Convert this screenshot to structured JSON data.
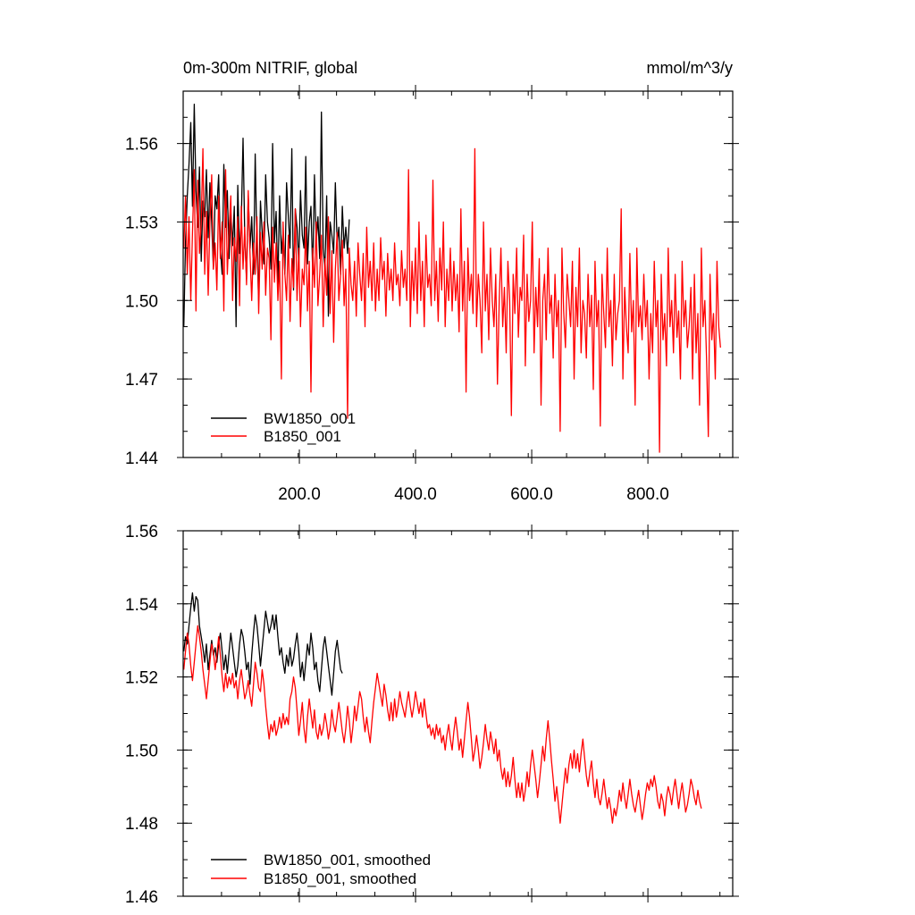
{
  "chart_data": [
    {
      "type": "line",
      "title_left": "0m-300m NITRIF, global",
      "title_right": "mmol/m^3/y",
      "xlim": [
        0,
        946
      ],
      "ylim": [
        1.44,
        1.58
      ],
      "yticks": [
        1.44,
        1.47,
        1.5,
        1.53,
        1.56
      ],
      "ytick_labels": [
        "1.44",
        "1.47",
        "1.50",
        "1.53",
        "1.56"
      ],
      "xticks": [
        200,
        400,
        600,
        800
      ],
      "xtick_labels": [
        "200.0",
        "400.0",
        "600.0",
        "800.0"
      ],
      "legend_position": "bottom-left",
      "series": [
        {
          "name": "BW1850_001",
          "color": "#000000",
          "x_start": 1,
          "x_step": 3,
          "values": [
            1.49,
            1.522,
            1.54,
            1.552,
            1.568,
            1.536,
            1.575,
            1.542,
            1.528,
            1.551,
            1.515,
            1.538,
            1.532,
            1.55,
            1.524,
            1.545,
            1.53,
            1.512,
            1.54,
            1.535,
            1.548,
            1.52,
            1.51,
            1.552,
            1.528,
            1.542,
            1.516,
            1.534,
            1.521,
            1.536,
            1.49,
            1.544,
            1.518,
            1.53,
            1.562,
            1.525,
            1.508,
            1.54,
            1.52,
            1.532,
            1.51,
            1.556,
            1.52,
            1.5,
            1.538,
            1.526,
            1.514,
            1.548,
            1.53,
            1.524,
            1.512,
            1.56,
            1.522,
            1.534,
            1.506,
            1.54,
            1.518,
            1.526,
            1.51,
            1.545,
            1.532,
            1.52,
            1.558,
            1.504,
            1.535,
            1.528,
            1.514,
            1.542,
            1.525,
            1.52,
            1.555,
            1.514,
            1.53,
            1.536,
            1.51,
            1.548,
            1.522,
            1.532,
            1.516,
            1.572,
            1.52,
            1.512,
            1.54,
            1.494,
            1.53,
            1.525,
            1.518,
            1.545,
            1.522,
            1.528,
            1.51,
            1.536,
            1.52,
            1.528,
            1.518,
            1.531
          ]
        },
        {
          "name": "B1850_001",
          "color": "#ff0000",
          "x_start": 1,
          "x_step": 3,
          "values": [
            1.52,
            1.54,
            1.51,
            1.532,
            1.5,
            1.526,
            1.55,
            1.496,
            1.546,
            1.518,
            1.53,
            1.558,
            1.51,
            1.534,
            1.502,
            1.53,
            1.548,
            1.512,
            1.522,
            1.504,
            1.54,
            1.516,
            1.53,
            1.496,
            1.55,
            1.51,
            1.527,
            1.54,
            1.5,
            1.524,
            1.515,
            1.532,
            1.498,
            1.536,
            1.512,
            1.528,
            1.506,
            1.542,
            1.518,
            1.5,
            1.522,
            1.51,
            1.532,
            1.495,
            1.526,
            1.512,
            1.53,
            1.502,
            1.52,
            1.516,
            1.485,
            1.528,
            1.507,
            1.522,
            1.5,
            1.515,
            1.47,
            1.53,
            1.51,
            1.5,
            1.525,
            1.492,
            1.516,
            1.505,
            1.535,
            1.5,
            1.52,
            1.49,
            1.512,
            1.506,
            1.528,
            1.496,
            1.515,
            1.465,
            1.52,
            1.505,
            1.53,
            1.498,
            1.51,
            1.525,
            1.49,
            1.516,
            1.502,
            1.532,
            1.495,
            1.519,
            1.484,
            1.512,
            1.526,
            1.5,
            1.51,
            1.523,
            1.498,
            1.512,
            1.455,
            1.52,
            1.506,
            1.5,
            1.515,
            1.494,
            1.522,
            1.51,
            1.5,
            1.518,
            1.49,
            1.528,
            1.505,
            1.515,
            1.5,
            1.522,
            1.496,
            1.512,
            1.5,
            1.524,
            1.508,
            1.515,
            1.494,
            1.518,
            1.504,
            1.512,
            1.5,
            1.522,
            1.506,
            1.51,
            1.498,
            1.519,
            1.505,
            1.512,
            1.5,
            1.55,
            1.49,
            1.515,
            1.5,
            1.52,
            1.495,
            1.53,
            1.5,
            1.515,
            1.49,
            1.525,
            1.505,
            1.51,
            1.498,
            1.546,
            1.5,
            1.515,
            1.492,
            1.52,
            1.504,
            1.53,
            1.49,
            1.512,
            1.5,
            1.52,
            1.496,
            1.515,
            1.5,
            1.51,
            1.488,
            1.535,
            1.496,
            1.515,
            1.465,
            1.52,
            1.5,
            1.51,
            1.495,
            1.558,
            1.49,
            1.51,
            1.5,
            1.48,
            1.53,
            1.496,
            1.51,
            1.485,
            1.52,
            1.5,
            1.49,
            1.51,
            1.468,
            1.5,
            1.52,
            1.49,
            1.505,
            1.48,
            1.515,
            1.5,
            1.456,
            1.51,
            1.495,
            1.52,
            1.486,
            1.505,
            1.5,
            1.525,
            1.475,
            1.51,
            1.492,
            1.5,
            1.53,
            1.48,
            1.505,
            1.49,
            1.516,
            1.46,
            1.5,
            1.51,
            1.485,
            1.52,
            1.495,
            1.502,
            1.478,
            1.51,
            1.49,
            1.5,
            1.45,
            1.52,
            1.496,
            1.482,
            1.51,
            1.5,
            1.49,
            1.515,
            1.47,
            1.505,
            1.49,
            1.52,
            1.48,
            1.5,
            1.495,
            1.478,
            1.51,
            1.49,
            1.502,
            1.466,
            1.515,
            1.49,
            1.5,
            1.452,
            1.51,
            1.495,
            1.482,
            1.52,
            1.49,
            1.5,
            1.475,
            1.51,
            1.485,
            1.495,
            1.5,
            1.535,
            1.47,
            1.505,
            1.49,
            1.48,
            1.518,
            1.488,
            1.5,
            1.46,
            1.52,
            1.49,
            1.498,
            1.485,
            1.51,
            1.49,
            1.5,
            1.47,
            1.495,
            1.48,
            1.515,
            1.49,
            1.5,
            1.442,
            1.51,
            1.485,
            1.495,
            1.475,
            1.52,
            1.49,
            1.5,
            1.48,
            1.51,
            1.486,
            1.496,
            1.47,
            1.515,
            1.49,
            1.5,
            1.482,
            1.49,
            1.505,
            1.47,
            1.51,
            1.48,
            1.495,
            1.46,
            1.52,
            1.49,
            1.5,
            1.478,
            1.448,
            1.51,
            1.485,
            1.495,
            1.47,
            1.515,
            1.49,
            1.482
          ]
        }
      ],
      "legend": [
        "BW1850_001",
        "B1850_001"
      ]
    },
    {
      "type": "line",
      "xlim": [
        0,
        946
      ],
      "ylim": [
        1.46,
        1.56
      ],
      "yticks": [
        1.46,
        1.48,
        1.5,
        1.52,
        1.54,
        1.56
      ],
      "ytick_labels": [
        "1.46",
        "1.48",
        "1.50",
        "1.52",
        "1.54",
        "1.56"
      ],
      "xticks": [
        200,
        400,
        600,
        800
      ],
      "legend_position": "bottom-left",
      "series": [
        {
          "name": "BW1850_001, smoothed",
          "color": "#000000",
          "x_start": 1,
          "x_step": 3,
          "values": [
            1.527,
            1.531,
            1.529,
            1.534,
            1.539,
            1.543,
            1.538,
            1.542,
            1.541,
            1.534,
            1.531,
            1.528,
            1.524,
            1.529,
            1.522,
            1.526,
            1.53,
            1.526,
            1.528,
            1.524,
            1.529,
            1.532,
            1.527,
            1.522,
            1.526,
            1.521,
            1.527,
            1.532,
            1.528,
            1.524,
            1.52,
            1.523,
            1.529,
            1.533,
            1.531,
            1.527,
            1.522,
            1.524,
            1.518,
            1.526,
            1.532,
            1.537,
            1.534,
            1.529,
            1.523,
            1.528,
            1.533,
            1.538,
            1.535,
            1.532,
            1.534,
            1.537,
            1.533,
            1.537,
            1.531,
            1.526,
            1.528,
            1.524,
            1.521,
            1.526,
            1.523,
            1.528,
            1.523,
            1.525,
            1.529,
            1.532,
            1.527,
            1.52,
            1.524,
            1.519,
            1.524,
            1.529,
            1.526,
            1.532,
            1.528,
            1.522,
            1.524,
            1.519,
            1.516,
            1.522,
            1.528,
            1.531,
            1.527,
            1.523,
            1.519,
            1.515,
            1.521,
            1.527,
            1.53,
            1.526,
            1.522,
            1.521
          ]
        },
        {
          "name": "B1850_001, smoothed",
          "color": "#ff0000",
          "x_start": 1,
          "x_step": 3,
          "values": [
            1.522,
            1.527,
            1.532,
            1.529,
            1.523,
            1.519,
            1.524,
            1.529,
            1.534,
            1.531,
            1.527,
            1.522,
            1.518,
            1.514,
            1.519,
            1.524,
            1.529,
            1.527,
            1.522,
            1.526,
            1.531,
            1.526,
            1.52,
            1.516,
            1.521,
            1.517,
            1.52,
            1.518,
            1.521,
            1.517,
            1.519,
            1.514,
            1.519,
            1.522,
            1.518,
            1.514,
            1.516,
            1.519,
            1.515,
            1.512,
            1.518,
            1.524,
            1.521,
            1.517,
            1.516,
            1.522,
            1.518,
            1.512,
            1.507,
            1.503,
            1.507,
            1.505,
            1.508,
            1.504,
            1.506,
            1.509,
            1.506,
            1.51,
            1.507,
            1.509,
            1.507,
            1.514,
            1.516,
            1.52,
            1.517,
            1.511,
            1.504,
            1.508,
            1.513,
            1.506,
            1.502,
            1.509,
            1.514,
            1.51,
            1.506,
            1.511,
            1.505,
            1.503,
            1.507,
            1.504,
            1.506,
            1.51,
            1.507,
            1.503,
            1.506,
            1.511,
            1.507,
            1.505,
            1.509,
            1.513,
            1.509,
            1.505,
            1.502,
            1.506,
            1.512,
            1.508,
            1.502,
            1.506,
            1.512,
            1.508,
            1.512,
            1.516,
            1.514,
            1.509,
            1.505,
            1.509,
            1.505,
            1.502,
            1.508,
            1.513,
            1.517,
            1.521,
            1.518,
            1.515,
            1.512,
            1.518,
            1.515,
            1.511,
            1.508,
            1.513,
            1.508,
            1.514,
            1.509,
            1.512,
            1.516,
            1.513,
            1.511,
            1.509,
            1.513,
            1.516,
            1.512,
            1.509,
            1.512,
            1.516,
            1.513,
            1.51,
            1.513,
            1.509,
            1.514,
            1.51,
            1.506,
            1.507,
            1.504,
            1.506,
            1.503,
            1.507,
            1.504,
            1.506,
            1.502,
            1.504,
            1.5,
            1.504,
            1.507,
            1.503,
            1.5,
            1.505,
            1.509,
            1.505,
            1.5,
            1.503,
            1.498,
            1.503,
            1.508,
            1.513,
            1.509,
            1.503,
            1.497,
            1.5,
            1.504,
            1.5,
            1.495,
            1.498,
            1.502,
            1.507,
            1.503,
            1.5,
            1.505,
            1.502,
            1.499,
            1.503,
            1.497,
            1.5,
            1.495,
            1.492,
            1.495,
            1.49,
            1.494,
            1.49,
            1.493,
            1.498,
            1.492,
            1.487,
            1.491,
            1.487,
            1.491,
            1.486,
            1.489,
            1.494,
            1.49,
            1.496,
            1.5,
            1.496,
            1.492,
            1.487,
            1.491,
            1.496,
            1.501,
            1.497,
            1.503,
            1.508,
            1.503,
            1.497,
            1.492,
            1.486,
            1.49,
            1.485,
            1.48,
            1.485,
            1.49,
            1.495,
            1.491,
            1.496,
            1.499,
            1.495,
            1.5,
            1.495,
            1.499,
            1.494,
            1.499,
            1.503,
            1.498,
            1.493,
            1.49,
            1.494,
            1.497,
            1.491,
            1.487,
            1.492,
            1.487,
            1.485,
            1.488,
            1.492,
            1.488,
            1.484,
            1.487,
            1.484,
            1.48,
            1.484,
            1.482,
            1.485,
            1.489,
            1.486,
            1.491,
            1.487,
            1.484,
            1.488,
            1.492,
            1.488,
            1.485,
            1.483,
            1.486,
            1.489,
            1.485,
            1.481,
            1.484,
            1.488,
            1.491,
            1.489,
            1.492,
            1.49,
            1.493,
            1.49,
            1.486,
            1.484,
            1.488,
            1.486,
            1.482,
            1.487,
            1.49,
            1.488,
            1.485,
            1.489,
            1.492,
            1.488,
            1.484,
            1.488,
            1.491,
            1.487,
            1.483,
            1.485,
            1.488,
            1.492,
            1.49,
            1.487,
            1.485,
            1.489,
            1.486,
            1.484
          ]
        }
      ],
      "legend": [
        "BW1850_001, smoothed",
        "B1850_001, smoothed"
      ]
    }
  ]
}
